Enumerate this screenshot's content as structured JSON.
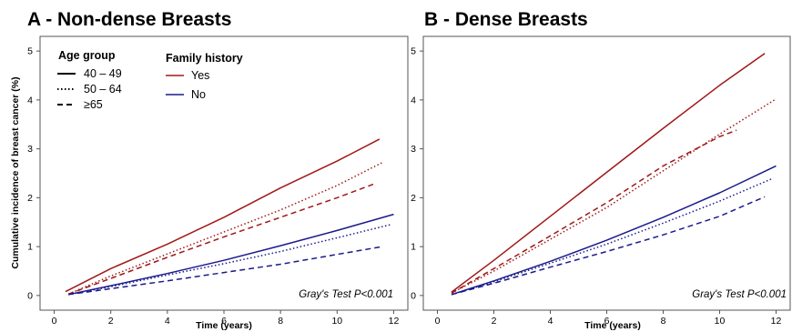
{
  "chart_data": [
    {
      "type": "line",
      "title": "A - Non-dense Breasts",
      "xlabel": "Time (years)",
      "ylabel": "Cumulative incidence of breast cancer (%)",
      "xlim": [
        -0.5,
        12.5
      ],
      "ylim": [
        -0.3,
        5.3
      ],
      "x_ticks": [
        "0",
        "2",
        "4",
        "6",
        "8",
        "10",
        "12"
      ],
      "y_ticks": [
        "0",
        "1",
        "2",
        "3",
        "4",
        "5"
      ],
      "annotation": "Gray's Test P<0.001",
      "series": [
        {
          "family_history": "Yes",
          "age_group": "40 – 49",
          "color": "#a01818",
          "dash": "solid",
          "x": [
            0.4,
            2,
            4,
            6,
            8,
            10,
            11.5
          ],
          "y": [
            0.08,
            0.55,
            1.05,
            1.6,
            2.2,
            2.75,
            3.2
          ]
        },
        {
          "family_history": "Yes",
          "age_group": "50 – 64",
          "color": "#a01818",
          "dash": "dotted",
          "x": [
            0.5,
            2,
            4,
            6,
            8,
            10,
            11.6
          ],
          "y": [
            0.03,
            0.4,
            0.85,
            1.3,
            1.75,
            2.25,
            2.72
          ]
        },
        {
          "family_history": "Yes",
          "age_group": "≥65",
          "color": "#a01818",
          "dash": "dashed",
          "x": [
            0.5,
            2,
            4,
            6,
            8,
            10,
            11.3
          ],
          "y": [
            0.03,
            0.35,
            0.78,
            1.2,
            1.6,
            2.0,
            2.28
          ]
        },
        {
          "family_history": "No",
          "age_group": "40 – 49",
          "color": "#1a1a8c",
          "dash": "solid",
          "x": [
            0.5,
            2,
            4,
            6,
            8,
            10,
            12
          ],
          "y": [
            0.02,
            0.2,
            0.45,
            0.72,
            1.02,
            1.33,
            1.66
          ]
        },
        {
          "family_history": "No",
          "age_group": "50 – 64",
          "color": "#1a1a8c",
          "dash": "dotted",
          "x": [
            0.5,
            2,
            4,
            6,
            8,
            10,
            11.9
          ],
          "y": [
            0.02,
            0.18,
            0.42,
            0.65,
            0.9,
            1.18,
            1.45
          ]
        },
        {
          "family_history": "No",
          "age_group": "≥65",
          "color": "#1a1a8c",
          "dash": "dashed",
          "x": [
            0.5,
            2,
            4,
            6,
            8,
            10,
            11.6
          ],
          "y": [
            0.02,
            0.14,
            0.3,
            0.47,
            0.64,
            0.84,
            1.0
          ]
        }
      ]
    },
    {
      "type": "line",
      "title": "B - Dense Breasts",
      "xlabel": "Time (years)",
      "ylabel": "",
      "xlim": [
        -0.5,
        12.5
      ],
      "ylim": [
        -0.3,
        5.3
      ],
      "x_ticks": [
        "0",
        "2",
        "4",
        "6",
        "8",
        "10",
        "12"
      ],
      "y_ticks": [
        "0",
        "1",
        "2",
        "3",
        "4",
        "5"
      ],
      "annotation": "Gray's Test P<0.001",
      "series": [
        {
          "family_history": "Yes",
          "age_group": "40 – 49",
          "color": "#a01818",
          "dash": "solid",
          "x": [
            0.5,
            2,
            4,
            6,
            8,
            10,
            11.6
          ],
          "y": [
            0.07,
            0.72,
            1.62,
            2.52,
            3.42,
            4.3,
            4.95
          ]
        },
        {
          "family_history": "Yes",
          "age_group": "50 – 64",
          "color": "#a01818",
          "dash": "dotted",
          "x": [
            0.5,
            2,
            4,
            6,
            8,
            10,
            12
          ],
          "y": [
            0.05,
            0.5,
            1.15,
            1.8,
            2.55,
            3.3,
            4.02
          ]
        },
        {
          "family_history": "Yes",
          "age_group": "≥65",
          "color": "#a01818",
          "dash": "dashed",
          "x": [
            0.5,
            2,
            4,
            6,
            8,
            10,
            10.6
          ],
          "y": [
            0.05,
            0.55,
            1.22,
            1.9,
            2.65,
            3.25,
            3.38
          ]
        },
        {
          "family_history": "No",
          "age_group": "40 – 49",
          "color": "#1a1a8c",
          "dash": "solid",
          "x": [
            0.5,
            2,
            4,
            6,
            8,
            10,
            12
          ],
          "y": [
            0.02,
            0.3,
            0.7,
            1.13,
            1.6,
            2.1,
            2.65
          ]
        },
        {
          "family_history": "No",
          "age_group": "50 – 64",
          "color": "#1a1a8c",
          "dash": "dotted",
          "x": [
            0.5,
            2,
            4,
            6,
            8,
            10,
            11.9
          ],
          "y": [
            0.02,
            0.28,
            0.66,
            1.05,
            1.48,
            1.93,
            2.4
          ]
        },
        {
          "family_history": "No",
          "age_group": "≥65",
          "color": "#1a1a8c",
          "dash": "dashed",
          "x": [
            0.5,
            2,
            4,
            6,
            8,
            10,
            11.6
          ],
          "y": [
            0.02,
            0.25,
            0.58,
            0.9,
            1.24,
            1.62,
            2.02
          ]
        }
      ]
    }
  ],
  "legend": {
    "age_title": "Age group",
    "age_items": [
      {
        "label": "40 – 49",
        "dash": "solid"
      },
      {
        "label": "50 – 64",
        "dash": "dotted"
      },
      {
        "label": "≥65",
        "dash": "dashed"
      }
    ],
    "family_title": "Family history",
    "family_items": [
      {
        "label": "Yes",
        "color": "#a01818"
      },
      {
        "label": "No",
        "color": "#1a1a8c"
      }
    ]
  }
}
